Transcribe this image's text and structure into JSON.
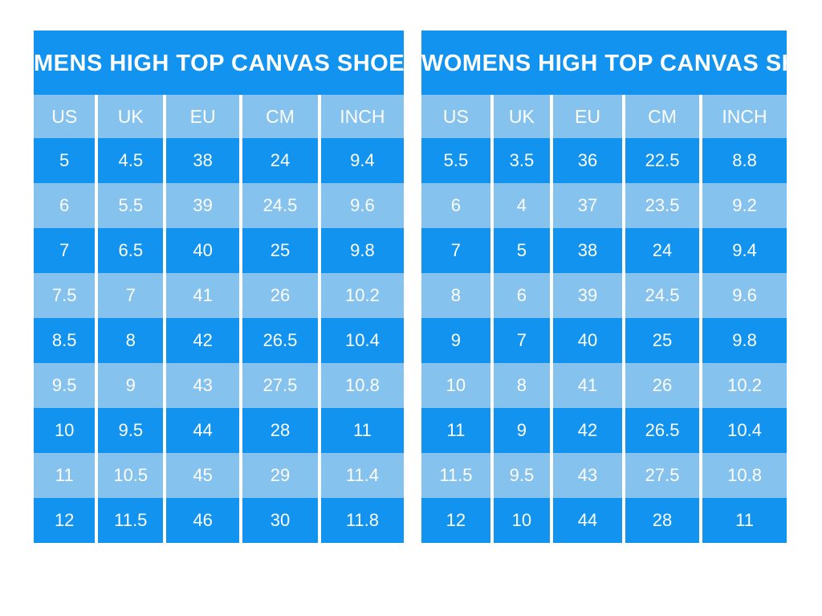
{
  "colors": {
    "dark_blue": "#1193ef",
    "light_blue": "#85c2ee",
    "text": "#ffffff",
    "background": "#ffffff"
  },
  "chart_data": [
    {
      "type": "table",
      "title": "MENS HIGH TOP CANVAS SHOE",
      "columns": [
        "US",
        "UK",
        "EU",
        "CM",
        "INCH"
      ],
      "rows": [
        [
          "5",
          "4.5",
          "38",
          "24",
          "9.4"
        ],
        [
          "6",
          "5.5",
          "39",
          "24.5",
          "9.6"
        ],
        [
          "7",
          "6.5",
          "40",
          "25",
          "9.8"
        ],
        [
          "7.5",
          "7",
          "41",
          "26",
          "10.2"
        ],
        [
          "8.5",
          "8",
          "42",
          "26.5",
          "10.4"
        ],
        [
          "9.5",
          "9",
          "43",
          "27.5",
          "10.8"
        ],
        [
          "10",
          "9.5",
          "44",
          "28",
          "11"
        ],
        [
          "11",
          "10.5",
          "45",
          "29",
          "11.4"
        ],
        [
          "12",
          "11.5",
          "46",
          "30",
          "11.8"
        ]
      ],
      "layout_hints": {
        "row_striping": "alternating dark/light starting dark",
        "header_background": "light_blue",
        "title_background": "dark_blue"
      }
    },
    {
      "type": "table",
      "title": "WOMENS HIGH TOP CANVAS SHOE",
      "columns": [
        "US",
        "UK",
        "EU",
        "CM",
        "INCH"
      ],
      "rows": [
        [
          "5.5",
          "3.5",
          "36",
          "22.5",
          "8.8"
        ],
        [
          "6",
          "4",
          "37",
          "23.5",
          "9.2"
        ],
        [
          "7",
          "5",
          "38",
          "24",
          "9.4"
        ],
        [
          "8",
          "6",
          "39",
          "24.5",
          "9.6"
        ],
        [
          "9",
          "7",
          "40",
          "25",
          "9.8"
        ],
        [
          "10",
          "8",
          "41",
          "26",
          "10.2"
        ],
        [
          "11",
          "9",
          "42",
          "26.5",
          "10.4"
        ],
        [
          "11.5",
          "9.5",
          "43",
          "27.5",
          "10.8"
        ],
        [
          "12",
          "10",
          "44",
          "28",
          "11"
        ]
      ],
      "layout_hints": {
        "row_striping": "alternating dark/light starting dark",
        "header_background": "light_blue",
        "title_background": "dark_blue"
      }
    }
  ]
}
